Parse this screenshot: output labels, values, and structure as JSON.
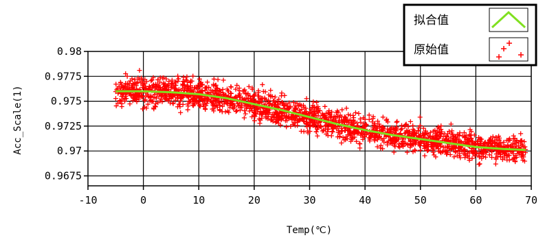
{
  "chart_data": {
    "type": "scatter",
    "xlabel": "Temp(℃)",
    "ylabel": "Acc_Scale(1)",
    "xlim": [
      -10,
      70
    ],
    "ylim": [
      0.9665,
      0.98
    ],
    "x_ticks": [
      -10,
      0,
      10,
      20,
      30,
      40,
      50,
      60,
      70
    ],
    "y_ticks": [
      0.9675,
      0.97,
      0.9725,
      0.975,
      0.9775,
      0.98
    ],
    "x_tick_labels": [
      "-10",
      "0",
      "10",
      "20",
      "30",
      "40",
      "50",
      "60",
      "70"
    ],
    "y_tick_labels": [
      "0.9675",
      "0.97",
      "0.9725",
      "0.975",
      "0.9775",
      "0.98"
    ],
    "grid": true,
    "legend_position": "top-right",
    "colors": {
      "fit": "#80e020",
      "raw": "#ff0000"
    },
    "series": [
      {
        "name": "拟合值",
        "kind": "line",
        "x": [
          -5,
          0,
          5,
          10,
          15,
          20,
          25,
          30,
          35,
          40,
          45,
          50,
          55,
          60,
          65,
          69
        ],
        "values": [
          0.976,
          0.976,
          0.9759,
          0.9757,
          0.9753,
          0.9747,
          0.9741,
          0.9734,
          0.9727,
          0.9721,
          0.9716,
          0.9712,
          0.9708,
          0.9704,
          0.9702,
          0.9701
        ]
      },
      {
        "name": "原始值",
        "kind": "scatter",
        "x_range": [
          -5,
          69
        ],
        "noise": 0.0013
      }
    ]
  }
}
